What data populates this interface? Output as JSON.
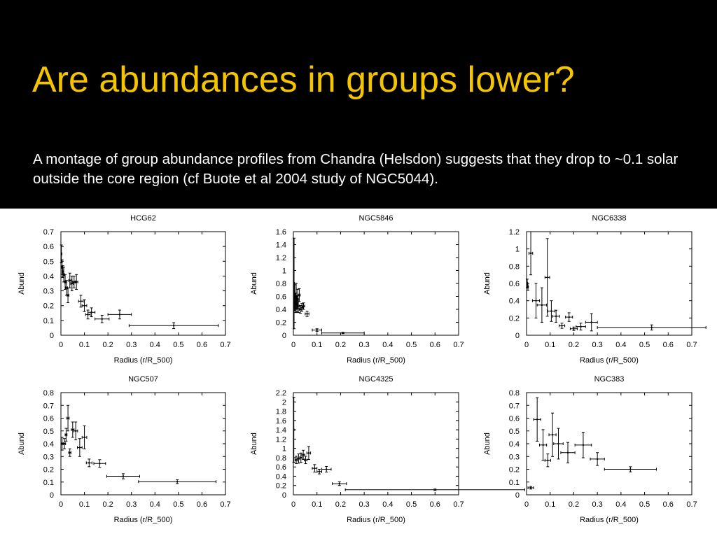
{
  "slide": {
    "title": "Are abundances in groups lower?",
    "caption": "A montage of group abundance profiles from Chandra (Helsdon) suggests that they drop to ~0.1 solar outside the core region (cf Buote et al 2004 study of NGC5044)."
  },
  "colors": {
    "header_bg": "#000000",
    "title": "#f5c400",
    "caption": "#ffffff",
    "plot_ink": "#000000"
  },
  "chart_data": [
    {
      "type": "scatter",
      "title": "HCG62",
      "xlabel": "Radius (r/R_500)",
      "ylabel": "Abund",
      "xlim": [
        0,
        0.7
      ],
      "ylim": [
        0,
        0.7
      ],
      "xticks": [
        0,
        0.1,
        0.2,
        0.3,
        0.4,
        0.5,
        0.6,
        0.7
      ],
      "yticks": [
        0,
        0.1,
        0.2,
        0.3,
        0.4,
        0.5,
        0.6,
        0.7
      ],
      "points": [
        {
          "x": 0.002,
          "y": 0.55,
          "xerr": 0.002,
          "yerr": 0.06
        },
        {
          "x": 0.005,
          "y": 0.46,
          "xerr": 0.002,
          "yerr": 0.05
        },
        {
          "x": 0.008,
          "y": 0.43,
          "xerr": 0.003,
          "yerr": 0.04
        },
        {
          "x": 0.012,
          "y": 0.41,
          "xerr": 0.003,
          "yerr": 0.05
        },
        {
          "x": 0.018,
          "y": 0.36,
          "xerr": 0.003,
          "yerr": 0.05
        },
        {
          "x": 0.024,
          "y": 0.32,
          "xerr": 0.004,
          "yerr": 0.05
        },
        {
          "x": 0.03,
          "y": 0.27,
          "xerr": 0.004,
          "yerr": 0.05
        },
        {
          "x": 0.038,
          "y": 0.37,
          "xerr": 0.005,
          "yerr": 0.05
        },
        {
          "x": 0.047,
          "y": 0.35,
          "xerr": 0.005,
          "yerr": 0.05
        },
        {
          "x": 0.056,
          "y": 0.36,
          "xerr": 0.006,
          "yerr": 0.04
        },
        {
          "x": 0.066,
          "y": 0.36,
          "xerr": 0.006,
          "yerr": 0.05
        },
        {
          "x": 0.085,
          "y": 0.23,
          "xerr": 0.01,
          "yerr": 0.04
        },
        {
          "x": 0.1,
          "y": 0.2,
          "xerr": 0.01,
          "yerr": 0.04
        },
        {
          "x": 0.115,
          "y": 0.14,
          "xerr": 0.01,
          "yerr": 0.03
        },
        {
          "x": 0.13,
          "y": 0.155,
          "xerr": 0.015,
          "yerr": 0.03
        },
        {
          "x": 0.175,
          "y": 0.11,
          "xerr": 0.03,
          "yerr": 0.025
        },
        {
          "x": 0.25,
          "y": 0.14,
          "xerr": 0.05,
          "yerr": 0.03
        },
        {
          "x": 0.48,
          "y": 0.065,
          "xerr": 0.19,
          "yerr": 0.02
        }
      ]
    },
    {
      "type": "scatter",
      "title": "NGC5846",
      "xlabel": "Radius (r/R_500)",
      "ylabel": "Abund",
      "xlim": [
        0,
        0.7
      ],
      "ylim": [
        0,
        1.6
      ],
      "xticks": [
        0,
        0.1,
        0.2,
        0.3,
        0.4,
        0.5,
        0.6,
        0.7
      ],
      "yticks": [
        0,
        0.2,
        0.4,
        0.6,
        0.8,
        1,
        1.2,
        1.4,
        1.6
      ],
      "points": [
        {
          "x": 0.003,
          "y": 0.8,
          "xerr": 0.002,
          "yerr": 0.7
        },
        {
          "x": 0.006,
          "y": 0.58,
          "xerr": 0.002,
          "yerr": 0.2
        },
        {
          "x": 0.009,
          "y": 0.5,
          "xerr": 0.002,
          "yerr": 0.15
        },
        {
          "x": 0.012,
          "y": 0.6,
          "xerr": 0.003,
          "yerr": 0.2
        },
        {
          "x": 0.015,
          "y": 0.48,
          "xerr": 0.003,
          "yerr": 0.12
        },
        {
          "x": 0.018,
          "y": 0.56,
          "xerr": 0.003,
          "yerr": 0.15
        },
        {
          "x": 0.021,
          "y": 0.45,
          "xerr": 0.004,
          "yerr": 0.1
        },
        {
          "x": 0.025,
          "y": 0.62,
          "xerr": 0.004,
          "yerr": 0.1
        },
        {
          "x": 0.03,
          "y": 0.4,
          "xerr": 0.005,
          "yerr": 0.06
        },
        {
          "x": 0.036,
          "y": 0.43,
          "xerr": 0.005,
          "yerr": 0.06
        },
        {
          "x": 0.043,
          "y": 0.45,
          "xerr": 0.005,
          "yerr": 0.05
        },
        {
          "x": 0.058,
          "y": 0.33,
          "xerr": 0.008,
          "yerr": 0.04
        },
        {
          "x": 0.1,
          "y": 0.08,
          "xerr": 0.02,
          "yerr": 0.02
        },
        {
          "x": 0.21,
          "y": 0.035,
          "xerr": 0.09,
          "yerr": 0.01
        }
      ]
    },
    {
      "type": "scatter",
      "title": "NGC6338",
      "xlabel": "Radius (r/R_500)",
      "ylabel": "Abund",
      "xlim": [
        0,
        0.7
      ],
      "ylim": [
        0,
        1.2
      ],
      "xticks": [
        0,
        0.1,
        0.2,
        0.3,
        0.4,
        0.5,
        0.6,
        0.7
      ],
      "yticks": [
        0,
        0.2,
        0.4,
        0.6,
        0.8,
        1,
        1.2
      ],
      "points": [
        {
          "x": 0.003,
          "y": 0.6,
          "xerr": 0.002,
          "yerr": 0.05
        },
        {
          "x": 0.006,
          "y": 0.56,
          "xerr": 0.002,
          "yerr": 0.04
        },
        {
          "x": 0.018,
          "y": 0.95,
          "xerr": 0.008,
          "yerr": 0.25
        },
        {
          "x": 0.04,
          "y": 0.4,
          "xerr": 0.015,
          "yerr": 0.2
        },
        {
          "x": 0.065,
          "y": 0.35,
          "xerr": 0.02,
          "yerr": 0.2
        },
        {
          "x": 0.088,
          "y": 0.67,
          "xerr": 0.01,
          "yerr": 0.45
        },
        {
          "x": 0.105,
          "y": 0.28,
          "xerr": 0.015,
          "yerr": 0.12
        },
        {
          "x": 0.125,
          "y": 0.22,
          "xerr": 0.015,
          "yerr": 0.07
        },
        {
          "x": 0.15,
          "y": 0.11,
          "xerr": 0.012,
          "yerr": 0.03
        },
        {
          "x": 0.18,
          "y": 0.21,
          "xerr": 0.015,
          "yerr": 0.05
        },
        {
          "x": 0.2,
          "y": 0.075,
          "xerr": 0.015,
          "yerr": 0.02
        },
        {
          "x": 0.23,
          "y": 0.1,
          "xerr": 0.02,
          "yerr": 0.04
        },
        {
          "x": 0.275,
          "y": 0.15,
          "xerr": 0.025,
          "yerr": 0.1
        },
        {
          "x": 0.53,
          "y": 0.09,
          "xerr": 0.23,
          "yerr": 0.03
        }
      ]
    },
    {
      "type": "scatter",
      "title": "NGC507",
      "xlabel": "Radius (r/R_500)",
      "ylabel": "Abund",
      "xlim": [
        0,
        0.7
      ],
      "ylim": [
        0,
        0.8
      ],
      "xticks": [
        0,
        0.1,
        0.2,
        0.3,
        0.4,
        0.5,
        0.6,
        0.7
      ],
      "yticks": [
        0,
        0.1,
        0.2,
        0.3,
        0.4,
        0.5,
        0.6,
        0.7,
        0.8
      ],
      "points": [
        {
          "x": 0.005,
          "y": 0.4,
          "xerr": 0.004,
          "yerr": 0.05
        },
        {
          "x": 0.015,
          "y": 0.4,
          "xerr": 0.005,
          "yerr": 0.04
        },
        {
          "x": 0.022,
          "y": 0.47,
          "xerr": 0.004,
          "yerr": 0.05
        },
        {
          "x": 0.03,
          "y": 0.6,
          "xerr": 0.005,
          "yerr": 0.1
        },
        {
          "x": 0.038,
          "y": 0.33,
          "xerr": 0.005,
          "yerr": 0.03
        },
        {
          "x": 0.05,
          "y": 0.51,
          "xerr": 0.006,
          "yerr": 0.06
        },
        {
          "x": 0.063,
          "y": 0.5,
          "xerr": 0.008,
          "yerr": 0.07
        },
        {
          "x": 0.08,
          "y": 0.37,
          "xerr": 0.01,
          "yerr": 0.07
        },
        {
          "x": 0.1,
          "y": 0.45,
          "xerr": 0.01,
          "yerr": 0.09
        },
        {
          "x": 0.12,
          "y": 0.25,
          "xerr": 0.012,
          "yerr": 0.03
        },
        {
          "x": 0.165,
          "y": 0.245,
          "xerr": 0.025,
          "yerr": 0.03
        },
        {
          "x": 0.265,
          "y": 0.145,
          "xerr": 0.07,
          "yerr": 0.02
        },
        {
          "x": 0.495,
          "y": 0.103,
          "xerr": 0.165,
          "yerr": 0.015
        }
      ]
    },
    {
      "type": "scatter",
      "title": "NGC4325",
      "xlabel": "Radius (r/R_500)",
      "ylabel": "Abund",
      "xlim": [
        0,
        0.7
      ],
      "ylim": [
        0,
        2.2
      ],
      "xticks": [
        0,
        0.1,
        0.2,
        0.3,
        0.4,
        0.5,
        0.6,
        0.7
      ],
      "yticks": [
        0,
        0.2,
        0.4,
        0.6,
        0.8,
        1,
        1.2,
        1.4,
        1.6,
        1.8,
        2,
        2.2
      ],
      "points": [
        {
          "x": 0.002,
          "y": 1.4,
          "xerr": 0.001,
          "yerr": 0.7
        },
        {
          "x": 0.012,
          "y": 0.75,
          "xerr": 0.005,
          "yerr": 0.08
        },
        {
          "x": 0.022,
          "y": 0.78,
          "xerr": 0.005,
          "yerr": 0.1
        },
        {
          "x": 0.032,
          "y": 0.8,
          "xerr": 0.005,
          "yerr": 0.1
        },
        {
          "x": 0.042,
          "y": 0.86,
          "xerr": 0.006,
          "yerr": 0.1
        },
        {
          "x": 0.052,
          "y": 0.75,
          "xerr": 0.006,
          "yerr": 0.08
        },
        {
          "x": 0.065,
          "y": 0.9,
          "xerr": 0.008,
          "yerr": 0.14
        },
        {
          "x": 0.09,
          "y": 0.57,
          "xerr": 0.01,
          "yerr": 0.08
        },
        {
          "x": 0.11,
          "y": 0.5,
          "xerr": 0.01,
          "yerr": 0.05
        },
        {
          "x": 0.14,
          "y": 0.55,
          "xerr": 0.02,
          "yerr": 0.06
        },
        {
          "x": 0.195,
          "y": 0.24,
          "xerr": 0.03,
          "yerr": 0.04
        },
        {
          "x": 0.6,
          "y": 0.11,
          "xerr": 0.38,
          "yerr": 0.015
        }
      ]
    },
    {
      "type": "scatter",
      "title": "NGC383",
      "xlabel": "Radius (r/R_500)",
      "ylabel": "Abund",
      "xlim": [
        0,
        0.7
      ],
      "ylim": [
        0,
        0.8
      ],
      "xticks": [
        0,
        0.1,
        0.2,
        0.3,
        0.4,
        0.5,
        0.6,
        0.7
      ],
      "yticks": [
        0,
        0.1,
        0.2,
        0.3,
        0.4,
        0.5,
        0.6,
        0.7,
        0.8
      ],
      "points": [
        {
          "x": 0.018,
          "y": 0.055,
          "xerr": 0.012,
          "yerr": 0.01
        },
        {
          "x": 0.045,
          "y": 0.59,
          "xerr": 0.015,
          "yerr": 0.17
        },
        {
          "x": 0.07,
          "y": 0.39,
          "xerr": 0.015,
          "yerr": 0.12
        },
        {
          "x": 0.09,
          "y": 0.27,
          "xerr": 0.012,
          "yerr": 0.05
        },
        {
          "x": 0.11,
          "y": 0.47,
          "xerr": 0.015,
          "yerr": 0.17
        },
        {
          "x": 0.135,
          "y": 0.4,
          "xerr": 0.02,
          "yerr": 0.12
        },
        {
          "x": 0.175,
          "y": 0.33,
          "xerr": 0.03,
          "yerr": 0.08
        },
        {
          "x": 0.24,
          "y": 0.39,
          "xerr": 0.035,
          "yerr": 0.1
        },
        {
          "x": 0.3,
          "y": 0.28,
          "xerr": 0.03,
          "yerr": 0.05
        },
        {
          "x": 0.44,
          "y": 0.2,
          "xerr": 0.11,
          "yerr": 0.02
        }
      ]
    }
  ]
}
